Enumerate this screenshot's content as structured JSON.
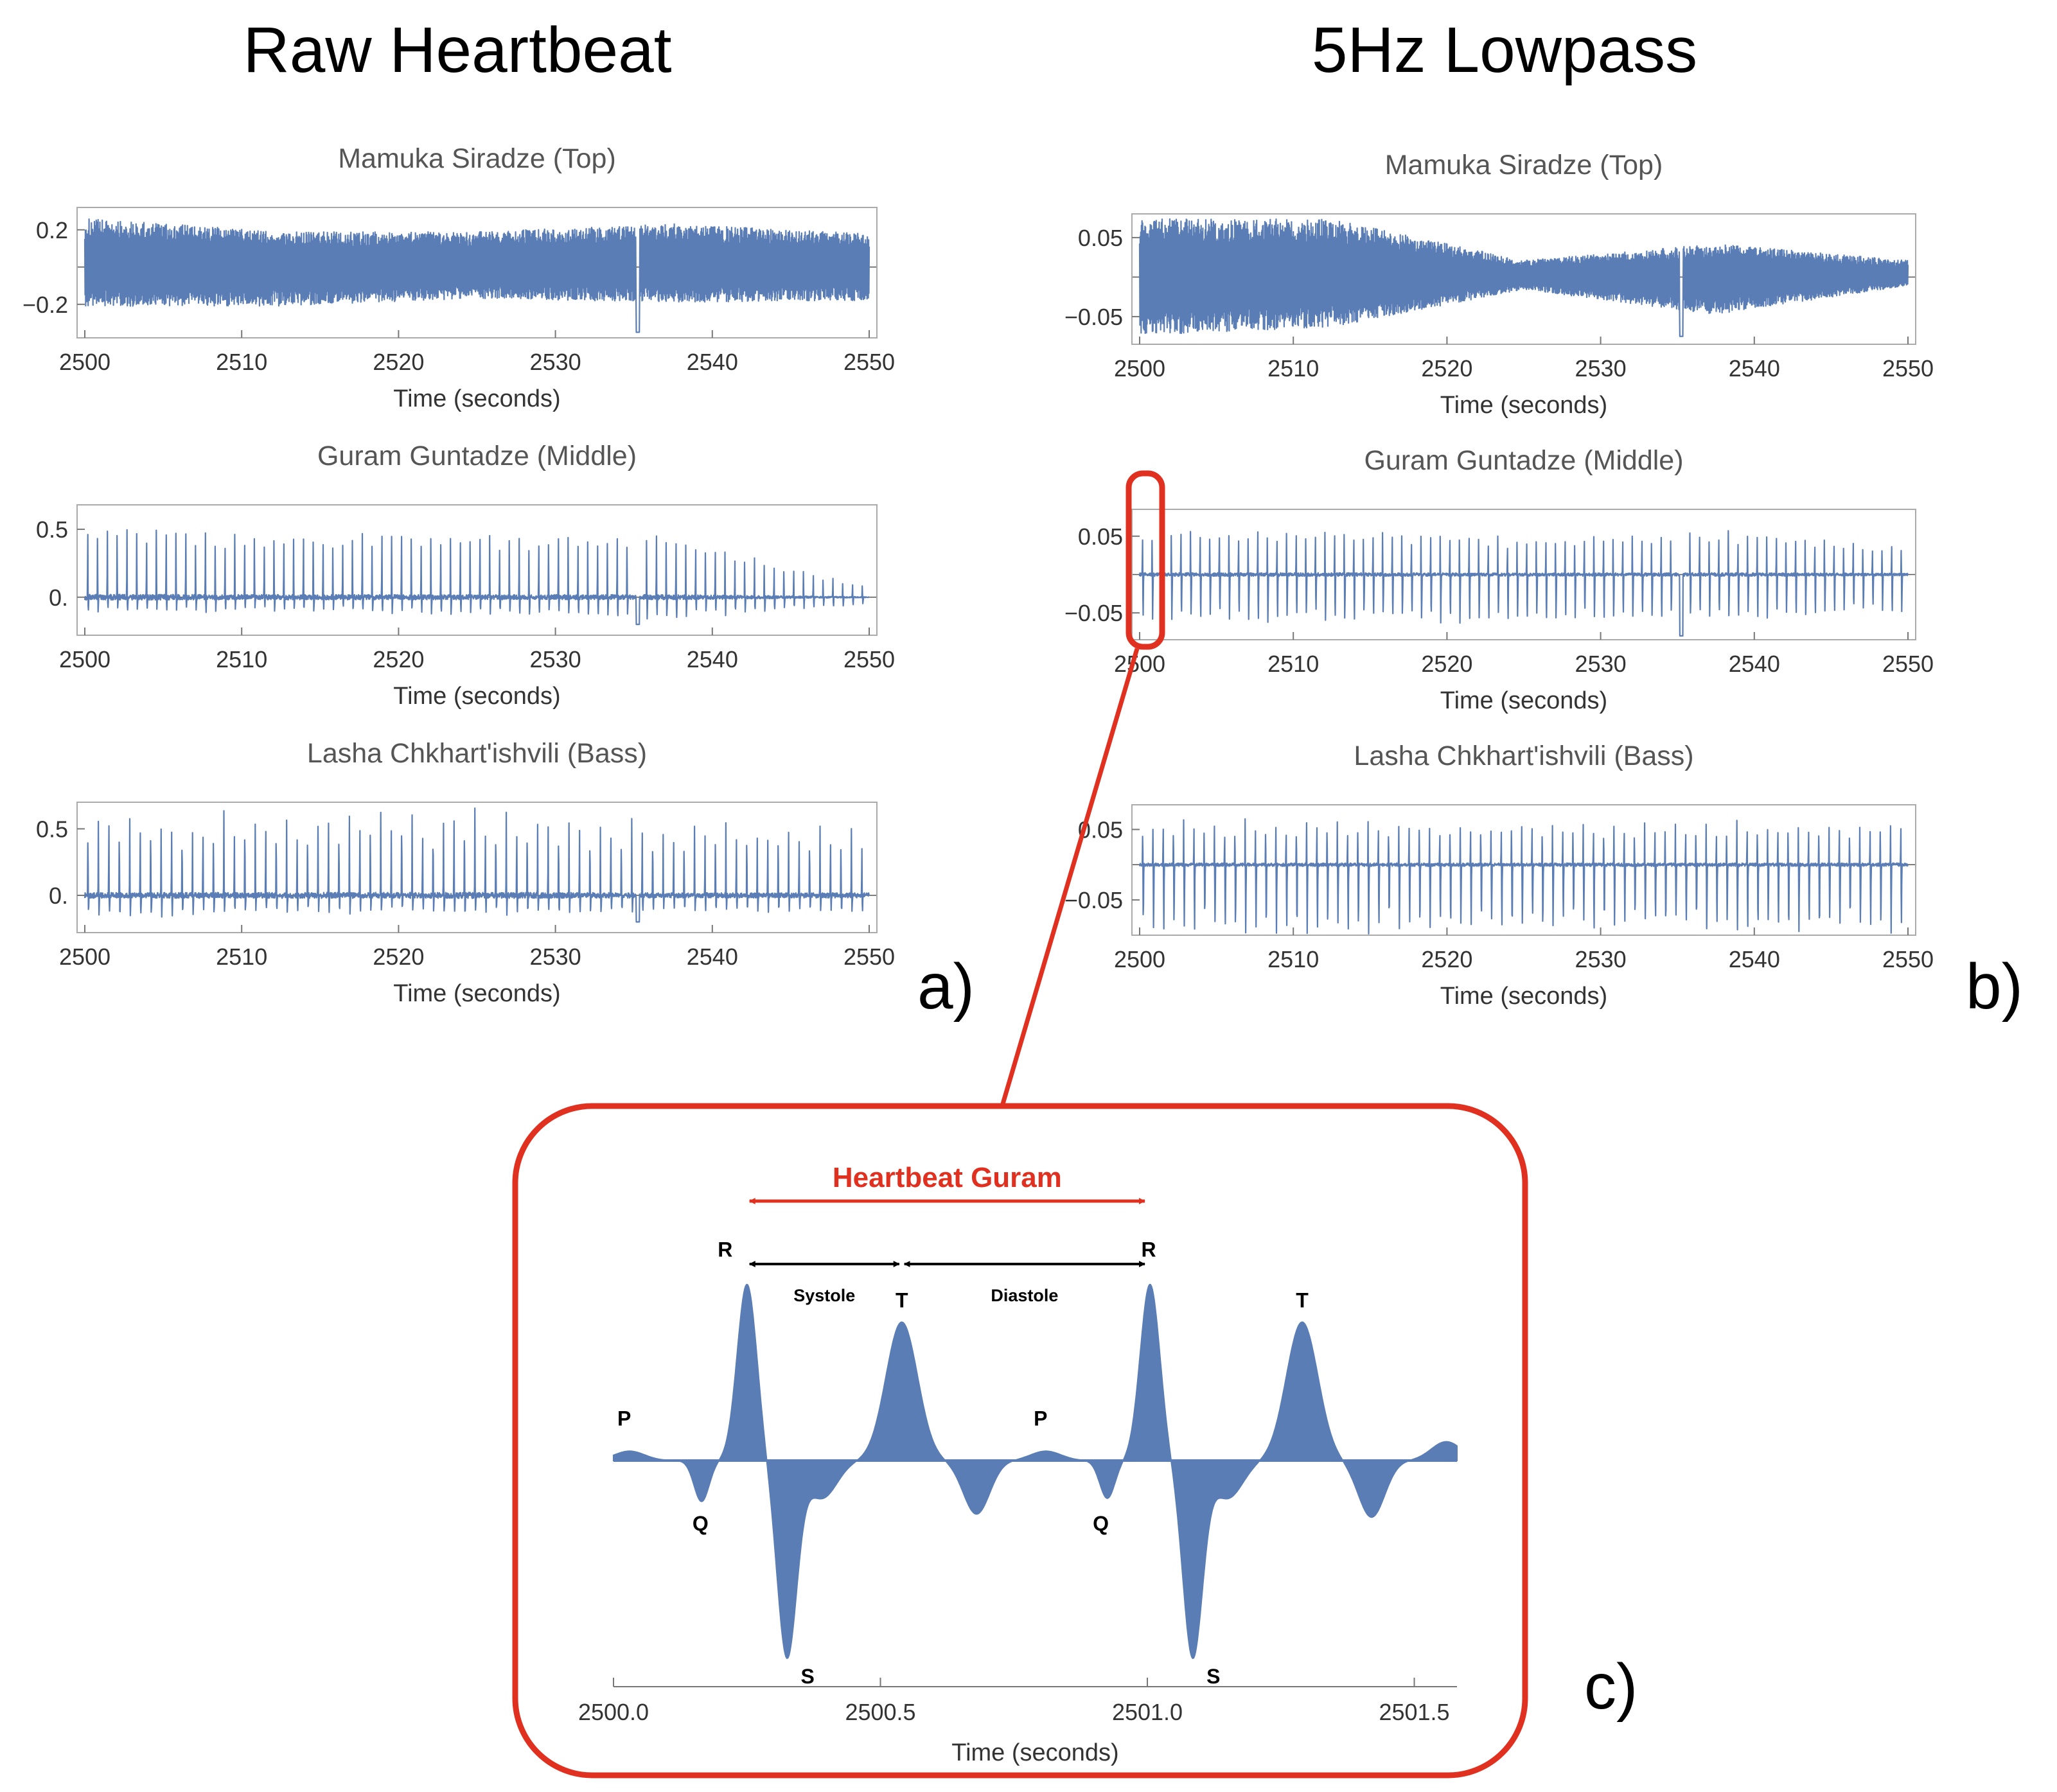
{
  "columns": {
    "left_title": "Raw Heartbeat",
    "right_title": "5Hz Lowpass"
  },
  "panel_letters": {
    "a": "a)",
    "b": "b)",
    "c": "c)"
  },
  "colors": {
    "series": "#5a7db5",
    "highlight": "#e03020"
  },
  "chart_data": [
    {
      "id": "raw-top",
      "type": "line",
      "title": "Mamuka Siradze (Top)",
      "xlabel": "Time (seconds)",
      "xlim": [
        2500,
        2550
      ],
      "xticks": [
        2500,
        2510,
        2520,
        2530,
        2540,
        2550
      ],
      "xtick_labels": [
        "2500",
        "2510",
        "2520",
        "2530",
        "2540",
        "2550"
      ],
      "ylim": [
        -0.38,
        0.32
      ],
      "yticks": [
        0.2,
        -0.2
      ],
      "ytick_labels": [
        "0.2",
        "−0.2"
      ],
      "beats_per_second": 0,
      "peak_envelope": [
        0.25,
        0.18,
        0.18,
        0.22,
        0.17
      ],
      "trough_envelope": [
        -0.2,
        -0.2,
        -0.16,
        -0.18,
        -0.17
      ],
      "min_value": -0.35
    },
    {
      "id": "raw-middle",
      "type": "line",
      "title": "Guram Guntadze (Middle)",
      "xlabel": "Time (seconds)",
      "xlim": [
        2500,
        2550
      ],
      "xticks": [
        2500,
        2510,
        2520,
        2530,
        2540,
        2550
      ],
      "xtick_labels": [
        "2500",
        "2510",
        "2520",
        "2530",
        "2540",
        "2550"
      ],
      "ylim": [
        -0.28,
        0.68
      ],
      "yticks": [
        0.5,
        0.0
      ],
      "ytick_labels": [
        "0.5",
        "0."
      ],
      "beats_per_second": 1.6,
      "peak_envelope": [
        0.55,
        0.5,
        0.48,
        0.48,
        0.08
      ],
      "trough_envelope": [
        -0.1,
        -0.1,
        -0.12,
        -0.15,
        -0.05
      ],
      "min_value": -0.2
    },
    {
      "id": "raw-bass",
      "type": "line",
      "title": "Lasha Chkhart'ishvili (Bass)",
      "xlabel": "Time (seconds)",
      "xlim": [
        2500,
        2550
      ],
      "xticks": [
        2500,
        2510,
        2520,
        2530,
        2540,
        2550
      ],
      "xtick_labels": [
        "2500",
        "2510",
        "2520",
        "2530",
        "2540",
        "2550"
      ],
      "ylim": [
        -0.28,
        0.7
      ],
      "yticks": [
        0.5,
        0.0
      ],
      "ytick_labels": [
        "0.5",
        "0."
      ],
      "beats_per_second": 1.5,
      "peak_envelope": [
        0.55,
        0.58,
        0.6,
        0.5,
        0.5
      ],
      "trough_envelope": [
        -0.15,
        -0.12,
        -0.12,
        -0.12,
        -0.12
      ],
      "min_value": -0.2
    },
    {
      "id": "lowpass-top",
      "type": "line",
      "title": "Mamuka Siradze (Top)",
      "xlabel": "Time (seconds)",
      "xlim": [
        2500,
        2550
      ],
      "xticks": [
        2500,
        2510,
        2520,
        2530,
        2540,
        2550
      ],
      "xtick_labels": [
        "2500",
        "2510",
        "2520",
        "2530",
        "2540",
        "2550"
      ],
      "ylim": [
        -0.085,
        0.08
      ],
      "yticks": [
        0.05,
        -0.05
      ],
      "ytick_labels": [
        "0.05",
        "−0.05"
      ],
      "beats_per_second": 0,
      "peak_envelope": [
        0.07,
        0.07,
        0.02,
        0.04,
        0.02
      ],
      "trough_envelope": [
        -0.07,
        -0.06,
        -0.015,
        -0.045,
        -0.01
      ],
      "min_value": -0.075
    },
    {
      "id": "lowpass-middle",
      "type": "line",
      "title": "Guram Guntadze (Middle)",
      "xlabel": "Time (seconds)",
      "xlim": [
        2500,
        2550
      ],
      "xticks": [
        2500,
        2510,
        2520,
        2530,
        2540,
        2550
      ],
      "xtick_labels": [
        "2500",
        "2510",
        "2520",
        "2530",
        "2540",
        "2550"
      ],
      "ylim": [
        -0.085,
        0.085
      ],
      "yticks": [
        0.05,
        -0.05
      ],
      "ytick_labels": [
        "0.05",
        "−0.05"
      ],
      "beats_per_second": 1.6,
      "peak_envelope": [
        0.06,
        0.06,
        0.05,
        0.06,
        0.04
      ],
      "trough_envelope": [
        -0.06,
        -0.06,
        -0.06,
        -0.06,
        -0.05
      ],
      "min_value": -0.08
    },
    {
      "id": "lowpass-bass",
      "type": "line",
      "title": "Lasha Chkhart'ishvili (Bass)",
      "xlabel": "Time (seconds)",
      "xlim": [
        2500,
        2550
      ],
      "xticks": [
        2500,
        2510,
        2520,
        2530,
        2540,
        2550
      ],
      "xtick_labels": [
        "2500",
        "2510",
        "2520",
        "2530",
        "2540",
        "2550"
      ],
      "ylim": [
        -0.1,
        0.085
      ],
      "yticks": [
        0.05,
        -0.05
      ],
      "ytick_labels": [
        "0.05",
        "−0.05"
      ],
      "beats_per_second": 1.5,
      "peak_envelope": [
        0.06,
        0.06,
        0.06,
        0.06,
        0.06
      ],
      "trough_envelope": [
        -0.09,
        -0.09,
        -0.09,
        -0.09,
        -0.09
      ],
      "min_value": -0.09
    },
    {
      "id": "zoom-ecg",
      "type": "area",
      "title": "Heartbeat Guram",
      "xlabel": "Time (seconds)",
      "xlim": [
        2500.0,
        2501.58
      ],
      "xticks": [
        2500.0,
        2500.5,
        2501.0,
        2501.5
      ],
      "xtick_labels": [
        "2500.0",
        "2500.5",
        "2501.0",
        "2501.5"
      ],
      "ylim": [
        -0.07,
        0.065
      ],
      "systole_label": "Systole",
      "diastole_label": "Diastole",
      "waves": [
        {
          "label": "P",
          "t": 2500.02,
          "y": 0.003
        },
        {
          "label": "Q",
          "t": 2500.17,
          "y": -0.012
        },
        {
          "label": "R",
          "t": 2500.25,
          "y": 0.055
        },
        {
          "label": "S",
          "t": 2500.33,
          "y": -0.061
        },
        {
          "label": "T",
          "t": 2500.54,
          "y": 0.043
        },
        {
          "label": "P",
          "t": 2500.8,
          "y": 0.003
        },
        {
          "label": "Q",
          "t": 2500.92,
          "y": -0.012
        },
        {
          "label": "R",
          "t": 2501.0,
          "y": 0.055
        },
        {
          "label": "S",
          "t": 2501.09,
          "y": -0.061
        },
        {
          "label": "T",
          "t": 2501.29,
          "y": 0.043
        }
      ],
      "components": [
        {
          "t": 2500.03,
          "a": 0.003,
          "w": 0.04
        },
        {
          "t": 2500.165,
          "a": -0.013,
          "w": 0.02
        },
        {
          "t": 2500.25,
          "a": 0.056,
          "w": 0.026
        },
        {
          "t": 2500.325,
          "a": -0.062,
          "w": 0.026
        },
        {
          "t": 2500.39,
          "a": -0.012,
          "w": 0.04
        },
        {
          "t": 2500.54,
          "a": 0.044,
          "w": 0.042
        },
        {
          "t": 2500.68,
          "a": -0.017,
          "w": 0.035
        },
        {
          "t": 2500.81,
          "a": 0.003,
          "w": 0.04
        },
        {
          "t": 2500.925,
          "a": -0.012,
          "w": 0.02
        },
        {
          "t": 2501.005,
          "a": 0.056,
          "w": 0.026
        },
        {
          "t": 2501.085,
          "a": -0.062,
          "w": 0.026
        },
        {
          "t": 2501.15,
          "a": -0.012,
          "w": 0.04
        },
        {
          "t": 2501.29,
          "a": 0.044,
          "w": 0.042
        },
        {
          "t": 2501.42,
          "a": -0.018,
          "w": 0.035
        },
        {
          "t": 2501.56,
          "a": 0.006,
          "w": 0.04
        }
      ]
    }
  ]
}
